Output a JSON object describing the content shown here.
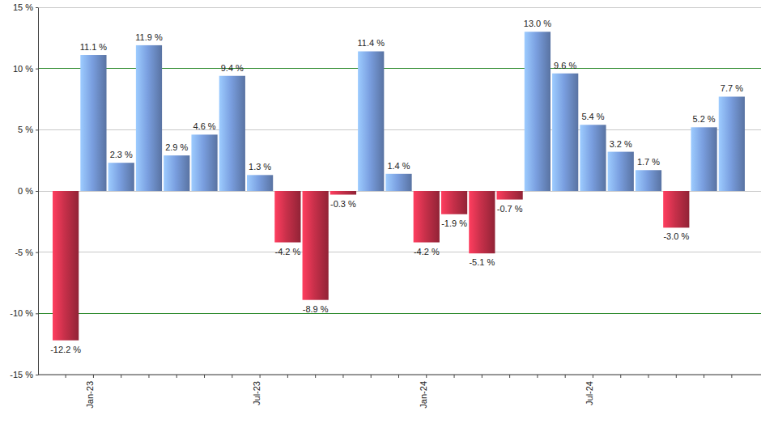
{
  "chart_data": {
    "type": "bar",
    "categories": [
      null,
      "Jan-23",
      null,
      null,
      null,
      null,
      null,
      "Jul-23",
      null,
      null,
      null,
      null,
      null,
      "Jan-24",
      null,
      null,
      null,
      null,
      null,
      "Jul-24",
      null,
      null,
      null,
      null,
      null
    ],
    "values": [
      -12.2,
      11.1,
      2.3,
      11.9,
      2.9,
      4.6,
      9.4,
      1.3,
      -4.2,
      -8.9,
      -0.3,
      11.4,
      1.4,
      -4.2,
      -1.9,
      -5.1,
      -0.7,
      13.0,
      9.6,
      5.4,
      3.2,
      1.7,
      -3.0,
      5.2,
      7.7
    ],
    "value_labels": [
      "-12.2 %",
      "11.1 %",
      "2.3 %",
      "11.9 %",
      "2.9 %",
      "4.6 %",
      "9.4 %",
      "1.3 %",
      "-4.2 %",
      "-8.9 %",
      "-0.3 %",
      "11.4 %",
      "1.4 %",
      "-4.2 %",
      "-1.9 %",
      "-5.1 %",
      "-0.7 %",
      "13.0 %",
      "9.6 %",
      "5.4 %",
      "3.2 %",
      "1.7 %",
      "-3.0 %",
      "5.2 %",
      "7.7 %"
    ],
    "colors": [
      "#c8304a",
      "#7a9fe0",
      "#7a9fe0",
      "#7a9fe0",
      "#7a9fe0",
      "#7a9fe0",
      "#7a9fe0",
      "#7a9fe0",
      "#c8304a",
      "#c8304a",
      "#c8304a",
      "#7a9fe0",
      "#7a9fe0",
      "#c8304a",
      "#c8304a",
      "#c8304a",
      "#c8304a",
      "#7a9fe0",
      "#7a9fe0",
      "#7a9fe0",
      "#7a9fe0",
      "#7a9fe0",
      "#c8304a",
      "#7a9fe0",
      "#7a9fe0"
    ],
    "ylim": [
      -15,
      15
    ],
    "yticks": [
      {
        "value": -15,
        "label": "-15 %"
      },
      {
        "value": -10,
        "label": "-10 %"
      },
      {
        "value": -5,
        "label": "-5 %"
      },
      {
        "value": 0,
        "label": "0 %"
      },
      {
        "value": 5,
        "label": "5 %"
      },
      {
        "value": 10,
        "label": "10 %"
      },
      {
        "value": 15,
        "label": "15 %"
      }
    ],
    "grid": true,
    "data_labels": true
  }
}
